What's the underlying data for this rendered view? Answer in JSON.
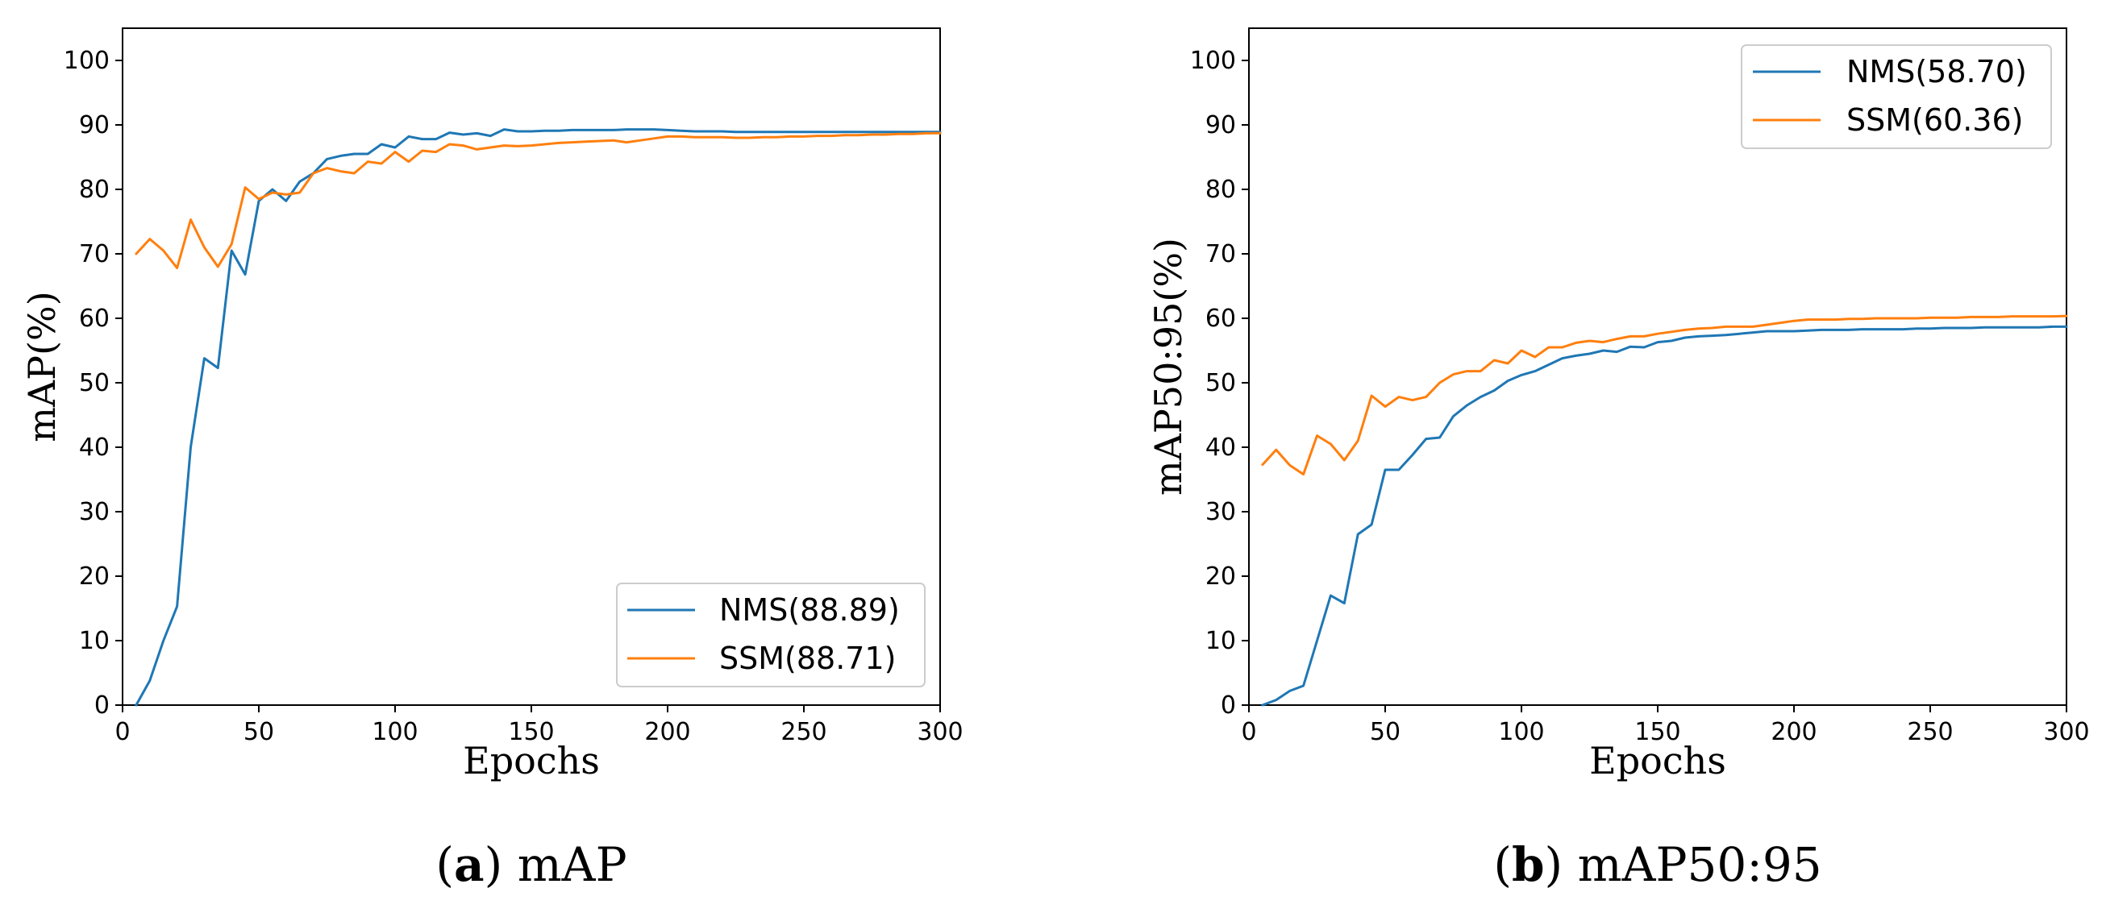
{
  "chart_data": [
    {
      "type": "line",
      "panel_letter": "a",
      "caption_open": "(",
      "caption_close": ")",
      "caption_text": "mAP",
      "xlabel": "Epochs",
      "ylabel": "mAP(%)",
      "xlim": [
        0,
        300
      ],
      "ylim": [
        0,
        105
      ],
      "xticks": [
        0,
        50,
        100,
        150,
        200,
        250,
        300
      ],
      "yticks": [
        0,
        10,
        20,
        30,
        40,
        50,
        60,
        70,
        80,
        90,
        100
      ],
      "legend_position": "bottom-right",
      "series": [
        {
          "name": "NMS(88.89)",
          "color": "#1f77b4",
          "x": [
            5,
            10,
            15,
            20,
            25,
            30,
            35,
            40,
            45,
            50,
            55,
            60,
            65,
            70,
            75,
            80,
            85,
            90,
            95,
            100,
            105,
            110,
            115,
            120,
            125,
            130,
            135,
            140,
            145,
            150,
            155,
            160,
            165,
            170,
            175,
            180,
            185,
            190,
            195,
            200,
            205,
            210,
            215,
            220,
            225,
            230,
            235,
            240,
            245,
            250,
            255,
            260,
            265,
            270,
            275,
            280,
            285,
            290,
            295,
            300
          ],
          "values": [
            0,
            3.8,
            10,
            15.3,
            40,
            53.8,
            52.3,
            70.5,
            66.8,
            78.2,
            80,
            78.2,
            81.2,
            82.5,
            84.7,
            85.2,
            85.5,
            85.5,
            87,
            86.5,
            88.2,
            87.8,
            87.8,
            88.8,
            88.5,
            88.7,
            88.3,
            89.3,
            89,
            89,
            89.1,
            89.1,
            89.2,
            89.2,
            89.2,
            89.2,
            89.3,
            89.3,
            89.3,
            89.2,
            89.1,
            89,
            89,
            89,
            88.9,
            88.9,
            88.9,
            88.9,
            88.9,
            88.9,
            88.9,
            88.9,
            88.9,
            88.9,
            88.9,
            88.9,
            88.9,
            88.9,
            88.9,
            88.9
          ]
        },
        {
          "name": "SSM(88.71)",
          "color": "#ff7f0e",
          "x": [
            5,
            10,
            15,
            20,
            25,
            30,
            35,
            40,
            45,
            50,
            55,
            60,
            65,
            70,
            75,
            80,
            85,
            90,
            95,
            100,
            105,
            110,
            115,
            120,
            125,
            130,
            135,
            140,
            145,
            150,
            155,
            160,
            165,
            170,
            175,
            180,
            185,
            190,
            195,
            200,
            205,
            210,
            215,
            220,
            225,
            230,
            235,
            240,
            245,
            250,
            255,
            260,
            265,
            270,
            275,
            280,
            285,
            290,
            295,
            300
          ],
          "values": [
            70,
            72.3,
            70.5,
            67.8,
            75.3,
            71,
            68,
            71.5,
            80.3,
            78.5,
            79.5,
            79.2,
            79.5,
            82.5,
            83.3,
            82.8,
            82.5,
            84.3,
            84,
            85.8,
            84.3,
            86,
            85.8,
            87,
            86.8,
            86.2,
            86.5,
            86.8,
            86.7,
            86.8,
            87,
            87.2,
            87.3,
            87.4,
            87.5,
            87.6,
            87.3,
            87.6,
            87.9,
            88.2,
            88.2,
            88.1,
            88.1,
            88.1,
            88,
            88,
            88.1,
            88.1,
            88.2,
            88.2,
            88.3,
            88.3,
            88.4,
            88.4,
            88.5,
            88.5,
            88.6,
            88.6,
            88.7,
            88.71
          ]
        }
      ]
    },
    {
      "type": "line",
      "panel_letter": "b",
      "caption_open": "(",
      "caption_close": ")",
      "caption_text": "mAP50:95",
      "xlabel": "Epochs",
      "ylabel": "mAP50:95(%)",
      "xlim": [
        0,
        300
      ],
      "ylim": [
        0,
        105
      ],
      "xticks": [
        0,
        50,
        100,
        150,
        200,
        250,
        300
      ],
      "yticks": [
        0,
        10,
        20,
        30,
        40,
        50,
        60,
        70,
        80,
        90,
        100
      ],
      "legend_position": "top-right",
      "series": [
        {
          "name": "NMS(58.70)",
          "color": "#1f77b4",
          "x": [
            5,
            10,
            15,
            20,
            25,
            30,
            35,
            40,
            45,
            50,
            55,
            60,
            65,
            70,
            75,
            80,
            85,
            90,
            95,
            100,
            105,
            110,
            115,
            120,
            125,
            130,
            135,
            140,
            145,
            150,
            155,
            160,
            165,
            170,
            175,
            180,
            185,
            190,
            195,
            200,
            205,
            210,
            215,
            220,
            225,
            230,
            235,
            240,
            245,
            250,
            255,
            260,
            265,
            270,
            275,
            280,
            285,
            290,
            295,
            300
          ],
          "values": [
            0,
            0.8,
            2.2,
            3,
            10,
            17,
            15.8,
            26.5,
            28,
            36.5,
            36.5,
            38.8,
            41.3,
            41.5,
            44.8,
            46.5,
            47.8,
            48.8,
            50.3,
            51.2,
            51.8,
            52.8,
            53.8,
            54.2,
            54.5,
            55,
            54.8,
            55.6,
            55.5,
            56.3,
            56.5,
            57,
            57.2,
            57.3,
            57.4,
            57.6,
            57.8,
            58,
            58,
            58,
            58.1,
            58.2,
            58.2,
            58.2,
            58.3,
            58.3,
            58.3,
            58.3,
            58.4,
            58.4,
            58.5,
            58.5,
            58.5,
            58.6,
            58.6,
            58.6,
            58.6,
            58.6,
            58.7,
            58.7
          ]
        },
        {
          "name": "SSM(60.36)",
          "color": "#ff7f0e",
          "x": [
            5,
            10,
            15,
            20,
            25,
            30,
            35,
            40,
            45,
            50,
            55,
            60,
            65,
            70,
            75,
            80,
            85,
            90,
            95,
            100,
            105,
            110,
            115,
            120,
            125,
            130,
            135,
            140,
            145,
            150,
            155,
            160,
            165,
            170,
            175,
            180,
            185,
            190,
            195,
            200,
            205,
            210,
            215,
            220,
            225,
            230,
            235,
            240,
            245,
            250,
            255,
            260,
            265,
            270,
            275,
            280,
            285,
            290,
            295,
            300
          ],
          "values": [
            37.3,
            39.6,
            37.2,
            35.8,
            41.8,
            40.5,
            38,
            41,
            48,
            46.3,
            47.8,
            47.3,
            47.8,
            50,
            51.3,
            51.8,
            51.8,
            53.5,
            53,
            55,
            54,
            55.5,
            55.5,
            56.2,
            56.5,
            56.3,
            56.8,
            57.2,
            57.2,
            57.6,
            57.9,
            58.2,
            58.4,
            58.5,
            58.7,
            58.7,
            58.7,
            59,
            59.3,
            59.6,
            59.8,
            59.8,
            59.8,
            59.9,
            59.9,
            60,
            60,
            60,
            60,
            60.1,
            60.1,
            60.1,
            60.2,
            60.2,
            60.2,
            60.3,
            60.3,
            60.3,
            60.3,
            60.36
          ]
        }
      ]
    }
  ]
}
